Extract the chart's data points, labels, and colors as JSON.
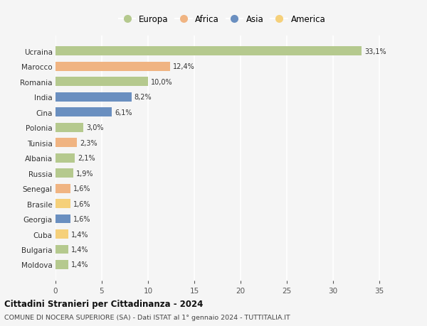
{
  "countries": [
    "Ucraina",
    "Marocco",
    "Romania",
    "India",
    "Cina",
    "Polonia",
    "Tunisia",
    "Albania",
    "Russia",
    "Senegal",
    "Brasile",
    "Georgia",
    "Cuba",
    "Bulgaria",
    "Moldova"
  ],
  "values": [
    33.1,
    12.4,
    10.0,
    8.2,
    6.1,
    3.0,
    2.3,
    2.1,
    1.9,
    1.6,
    1.6,
    1.6,
    1.4,
    1.4,
    1.4
  ],
  "labels": [
    "33,1%",
    "12,4%",
    "10,0%",
    "8,2%",
    "6,1%",
    "3,0%",
    "2,3%",
    "2,1%",
    "1,9%",
    "1,6%",
    "1,6%",
    "1,6%",
    "1,4%",
    "1,4%",
    "1,4%"
  ],
  "continents": [
    "Europa",
    "Africa",
    "Europa",
    "Asia",
    "Asia",
    "Europa",
    "Africa",
    "Europa",
    "Europa",
    "Africa",
    "America",
    "Asia",
    "America",
    "Europa",
    "Europa"
  ],
  "continent_colors": {
    "Europa": "#b5c98e",
    "Africa": "#f0b482",
    "Asia": "#6a8fc0",
    "America": "#f5d07a"
  },
  "legend_order": [
    "Europa",
    "Africa",
    "Asia",
    "America"
  ],
  "title1": "Cittadini Stranieri per Cittadinanza - 2024",
  "title2": "COMUNE DI NOCERA SUPERIORE (SA) - Dati ISTAT al 1° gennaio 2024 - TUTTITALIA.IT",
  "xlim": [
    0,
    36
  ],
  "xticks": [
    0,
    5,
    10,
    15,
    20,
    25,
    30,
    35
  ],
  "background_color": "#f5f5f5",
  "grid_color": "#ffffff"
}
